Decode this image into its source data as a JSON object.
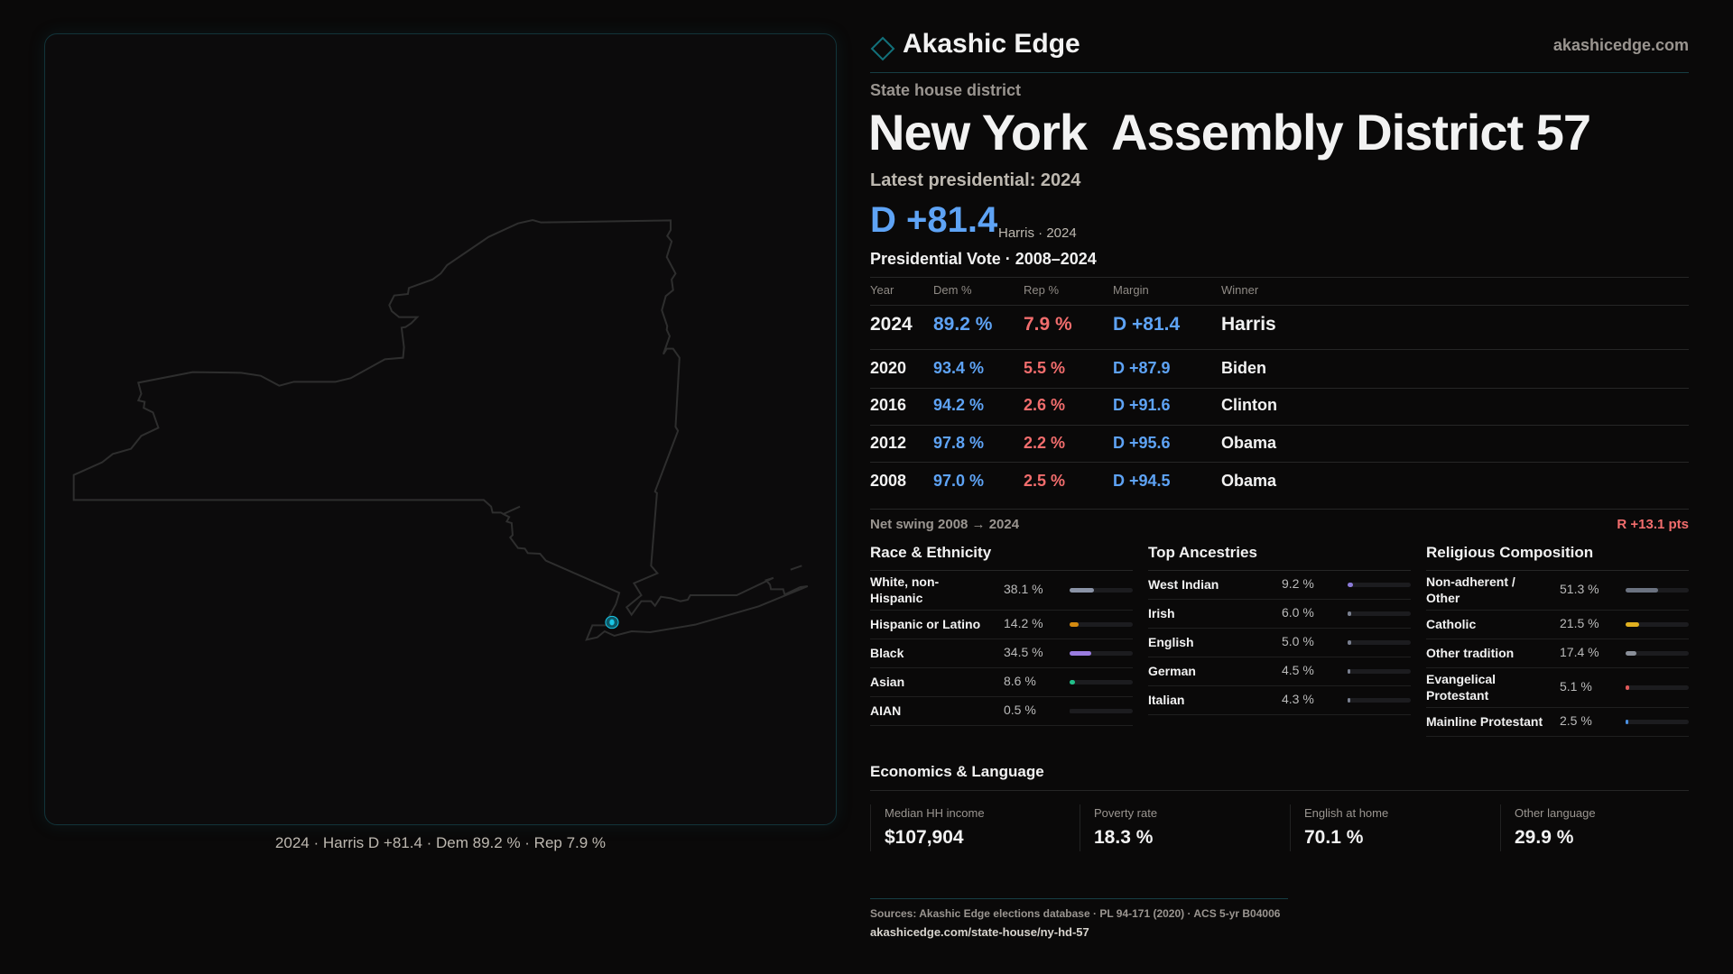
{
  "brand": {
    "name": "Akashic Edge",
    "site": "akashicedge.com"
  },
  "header": {
    "kicker": "State house district",
    "title": "New York  Assembly District 57",
    "latest_label": "Latest presidential: 2024",
    "margin": "D +81.4",
    "margin_sub": "Harris · 2024"
  },
  "map": {
    "caption": "2024 · Harris D +81.4 · Dem 89.2 % · Rep 7.9 %",
    "highlight_color": "#19c6e6"
  },
  "table": {
    "title": "Presidential Vote · 2008–2024",
    "headers": [
      "Year",
      "Dem %",
      "Rep %",
      "Margin",
      "Winner"
    ],
    "rows": [
      {
        "year": "2024",
        "dem": "89.2 %",
        "rep": "7.9 %",
        "margin": "D +81.4",
        "winner": "Harris"
      },
      {
        "year": "2020",
        "dem": "93.4 %",
        "rep": "5.5 %",
        "margin": "D +87.9",
        "winner": "Biden"
      },
      {
        "year": "2016",
        "dem": "94.2 %",
        "rep": "2.6 %",
        "margin": "D +91.6",
        "winner": "Clinton"
      },
      {
        "year": "2012",
        "dem": "97.8 %",
        "rep": "2.2 %",
        "margin": "D +95.6",
        "winner": "Obama"
      },
      {
        "year": "2008",
        "dem": "97.0 %",
        "rep": "2.5 %",
        "margin": "D +94.5",
        "winner": "Obama"
      }
    ]
  },
  "swing": {
    "label": "Net swing 2008 → 2024",
    "value": "R +13.1 pts"
  },
  "race": {
    "title": "Race & Ethnicity",
    "items": [
      {
        "label": "White, non-Hispanic",
        "value": "38.1 %",
        "pct": 38.1,
        "color": "#8a93a6"
      },
      {
        "label": "Hispanic or Latino",
        "value": "14.2 %",
        "pct": 14.2,
        "color": "#d48a10"
      },
      {
        "label": "Black",
        "value": "34.5 %",
        "pct": 34.5,
        "color": "#9a7ce0"
      },
      {
        "label": "Asian",
        "value": "8.6 %",
        "pct": 8.6,
        "color": "#22c08a"
      },
      {
        "label": "AIAN",
        "value": "0.5 %",
        "pct": 0.5,
        "color": "#1c1c1f"
      }
    ]
  },
  "ancestry": {
    "title": "Top Ancestries",
    "items": [
      {
        "label": "West Indian",
        "value": "9.2 %",
        "pct": 9.2,
        "color": "#8b7ad8"
      },
      {
        "label": "Irish",
        "value": "6.0 %",
        "pct": 6.0,
        "color": "#7a8090"
      },
      {
        "label": "English",
        "value": "5.0 %",
        "pct": 5.0,
        "color": "#7a8090"
      },
      {
        "label": "German",
        "value": "4.5 %",
        "pct": 4.5,
        "color": "#7a8090"
      },
      {
        "label": "Italian",
        "value": "4.3 %",
        "pct": 4.3,
        "color": "#7a8090"
      }
    ]
  },
  "religion": {
    "title": "Religious Composition",
    "items": [
      {
        "label": "Non-adherent / Other",
        "value": "51.3 %",
        "pct": 51.3,
        "color": "#6b7280"
      },
      {
        "label": "Catholic",
        "value": "21.5 %",
        "pct": 21.5,
        "color": "#e0b020"
      },
      {
        "label": "Other tradition",
        "value": "17.4 %",
        "pct": 17.4,
        "color": "#8a8f99"
      },
      {
        "label": "Evangelical Protestant",
        "value": "5.1 %",
        "pct": 5.1,
        "color": "#e05a5a"
      },
      {
        "label": "Mainline Protestant",
        "value": "2.5 %",
        "pct": 2.5,
        "color": "#4a90e2"
      }
    ]
  },
  "economics": {
    "title": "Economics & Language",
    "cards": [
      {
        "label": "Median HH income",
        "value": "$107,904"
      },
      {
        "label": "Poverty rate",
        "value": "18.3 %"
      },
      {
        "label": "English at home",
        "value": "70.1 %"
      },
      {
        "label": "Other language",
        "value": "29.9 %"
      }
    ]
  },
  "footer": {
    "sources": "Sources: Akashic Edge elections database · PL 94-171 (2020) · ACS 5-yr B04006",
    "url": "akashicedge.com/state-house/ny-hd-57"
  },
  "colors": {
    "dem": "#5ea3f5",
    "rep": "#f26d6d",
    "accent": "#12707a"
  }
}
